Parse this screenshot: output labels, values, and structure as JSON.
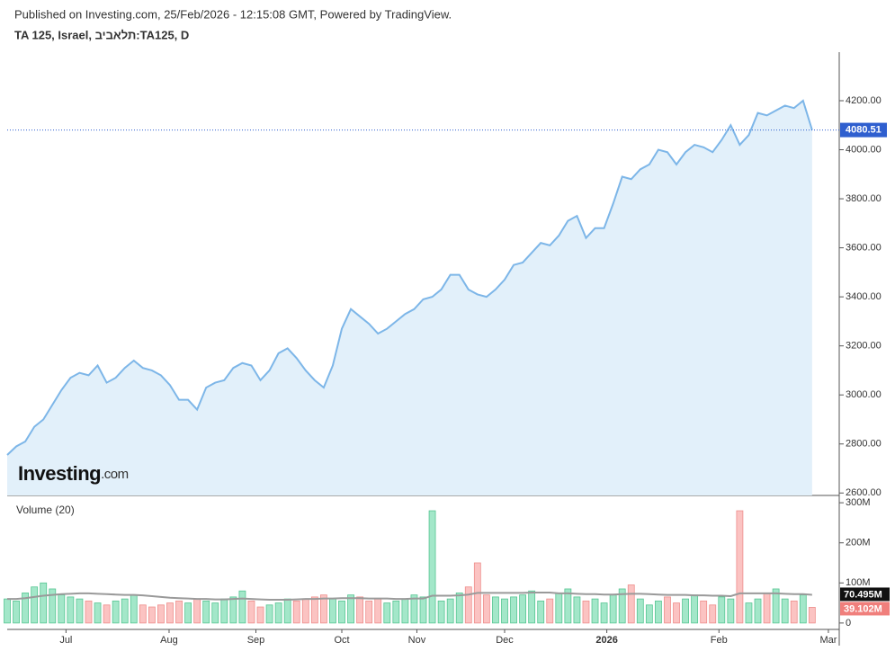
{
  "chart_data": [
    {
      "type": "area",
      "source_note": "Published on Investing.com, 25/Feb/2026 - 12:15:08 GMT, Powered by TradingView.",
      "title": "TA 125, Israel, תלאביב:TA125, D",
      "watermark": {
        "brand": "Investing",
        "suffix": ".com"
      },
      "color": "#7db6e8",
      "fill": "#e2f0fa",
      "last_line_color": "#2f5fcf",
      "xlim": [
        0,
        92
      ],
      "values": [
        2755,
        2790,
        2810,
        2870,
        2900,
        2960,
        3020,
        3070,
        3090,
        3080,
        3120,
        3050,
        3070,
        3110,
        3140,
        3110,
        3100,
        3080,
        3040,
        2980,
        2980,
        2940,
        3030,
        3050,
        3060,
        3110,
        3130,
        3120,
        3060,
        3100,
        3170,
        3190,
        3150,
        3100,
        3060,
        3030,
        3120,
        3270,
        3350,
        3320,
        3290,
        3250,
        3270,
        3300,
        3330,
        3350,
        3390,
        3400,
        3430,
        3490,
        3490,
        3430,
        3410,
        3400,
        3430,
        3470,
        3530,
        3540,
        3580,
        3620,
        3610,
        3650,
        3710,
        3730,
        3640,
        3680,
        3680,
        3780,
        3890,
        3880,
        3920,
        3940,
        4000,
        3990,
        3940,
        3990,
        4020,
        4010,
        3990,
        4040,
        4100,
        4020,
        4060,
        4150,
        4140,
        4160,
        4180,
        4170,
        4200,
        4080.51
      ],
      "ylim": [
        2590,
        4398
      ],
      "yticks": [
        {
          "value": 2600,
          "label": "2600.00"
        },
        {
          "value": 2800,
          "label": "2800.00"
        },
        {
          "value": 3000,
          "label": "3000.00"
        },
        {
          "value": 3200,
          "label": "3200.00"
        },
        {
          "value": 3400,
          "label": "3400.00"
        },
        {
          "value": 3600,
          "label": "3600.00"
        },
        {
          "value": 3800,
          "label": "3800.00"
        },
        {
          "value": 4000,
          "label": "4000.00"
        },
        {
          "value": 4200,
          "label": "4200.00"
        }
      ]
    },
    {
      "type": "bar",
      "title": "Volume (20)",
      "xlim": [
        0,
        92
      ],
      "up_color": "#a3e7c9",
      "up_edge": "#56c592",
      "down_color": "#fbc3c2",
      "down_edge": "#ee8e8c",
      "series": [
        {
          "name": "Volume",
          "values": [
            60,
            55,
            75,
            90,
            100,
            85,
            70,
            65,
            60,
            55,
            50,
            45,
            55,
            60,
            70,
            45,
            40,
            45,
            50,
            55,
            50,
            60,
            55,
            50,
            60,
            65,
            80,
            55,
            40,
            45,
            50,
            60,
            55,
            60,
            65,
            70,
            60,
            55,
            70,
            65,
            55,
            60,
            50,
            55,
            60,
            70,
            65,
            280,
            55,
            60,
            75,
            90,
            150,
            70,
            65,
            60,
            65,
            70,
            80,
            55,
            60,
            75,
            85,
            65,
            55,
            60,
            50,
            70,
            85,
            95,
            60,
            45,
            55,
            65,
            50,
            60,
            70,
            55,
            45,
            65,
            60,
            280,
            50,
            60,
            75,
            85,
            60,
            55,
            70,
            39.102
          ],
          "last_label": "39.102M"
        },
        {
          "name": "Volume MA",
          "color": "#9a9a9a",
          "values": [
            60,
            60,
            62,
            65,
            68,
            70,
            72,
            73,
            74,
            74,
            73,
            72,
            71,
            70,
            70,
            69,
            67,
            65,
            63,
            62,
            61,
            60,
            60,
            59,
            59,
            60,
            61,
            60,
            59,
            58,
            58,
            58,
            59,
            60,
            60,
            61,
            61,
            62,
            62,
            62,
            61,
            61,
            61,
            60,
            60,
            61,
            61,
            68,
            68,
            68,
            69,
            71,
            75,
            75,
            75,
            75,
            75,
            75,
            76,
            76,
            76,
            74,
            74,
            73,
            72,
            72,
            71,
            71,
            72,
            73,
            73,
            72,
            71,
            70,
            70,
            70,
            69,
            69,
            68,
            68,
            67,
            74,
            74,
            74,
            74,
            74,
            73,
            72,
            72,
            70.495
          ],
          "last_label": "70.495M"
        }
      ],
      "ylim": [
        -16,
        316
      ],
      "yticks": [
        {
          "value": 0,
          "label": "0"
        },
        {
          "value": 100,
          "label": "100M"
        },
        {
          "value": 200,
          "label": "200M"
        },
        {
          "value": 300,
          "label": "300M"
        }
      ],
      "xticks": [
        {
          "value": 6.5,
          "label": "Jul"
        },
        {
          "value": 17.9,
          "label": "Aug"
        },
        {
          "value": 27.5,
          "label": "Sep"
        },
        {
          "value": 37,
          "label": "Oct"
        },
        {
          "value": 45.3,
          "label": "Nov"
        },
        {
          "value": 55,
          "label": "Dec"
        },
        {
          "value": 66.3,
          "label": "2026"
        },
        {
          "value": 78.7,
          "label": "Feb"
        },
        {
          "value": 90.8,
          "label": "Mar"
        }
      ]
    }
  ]
}
